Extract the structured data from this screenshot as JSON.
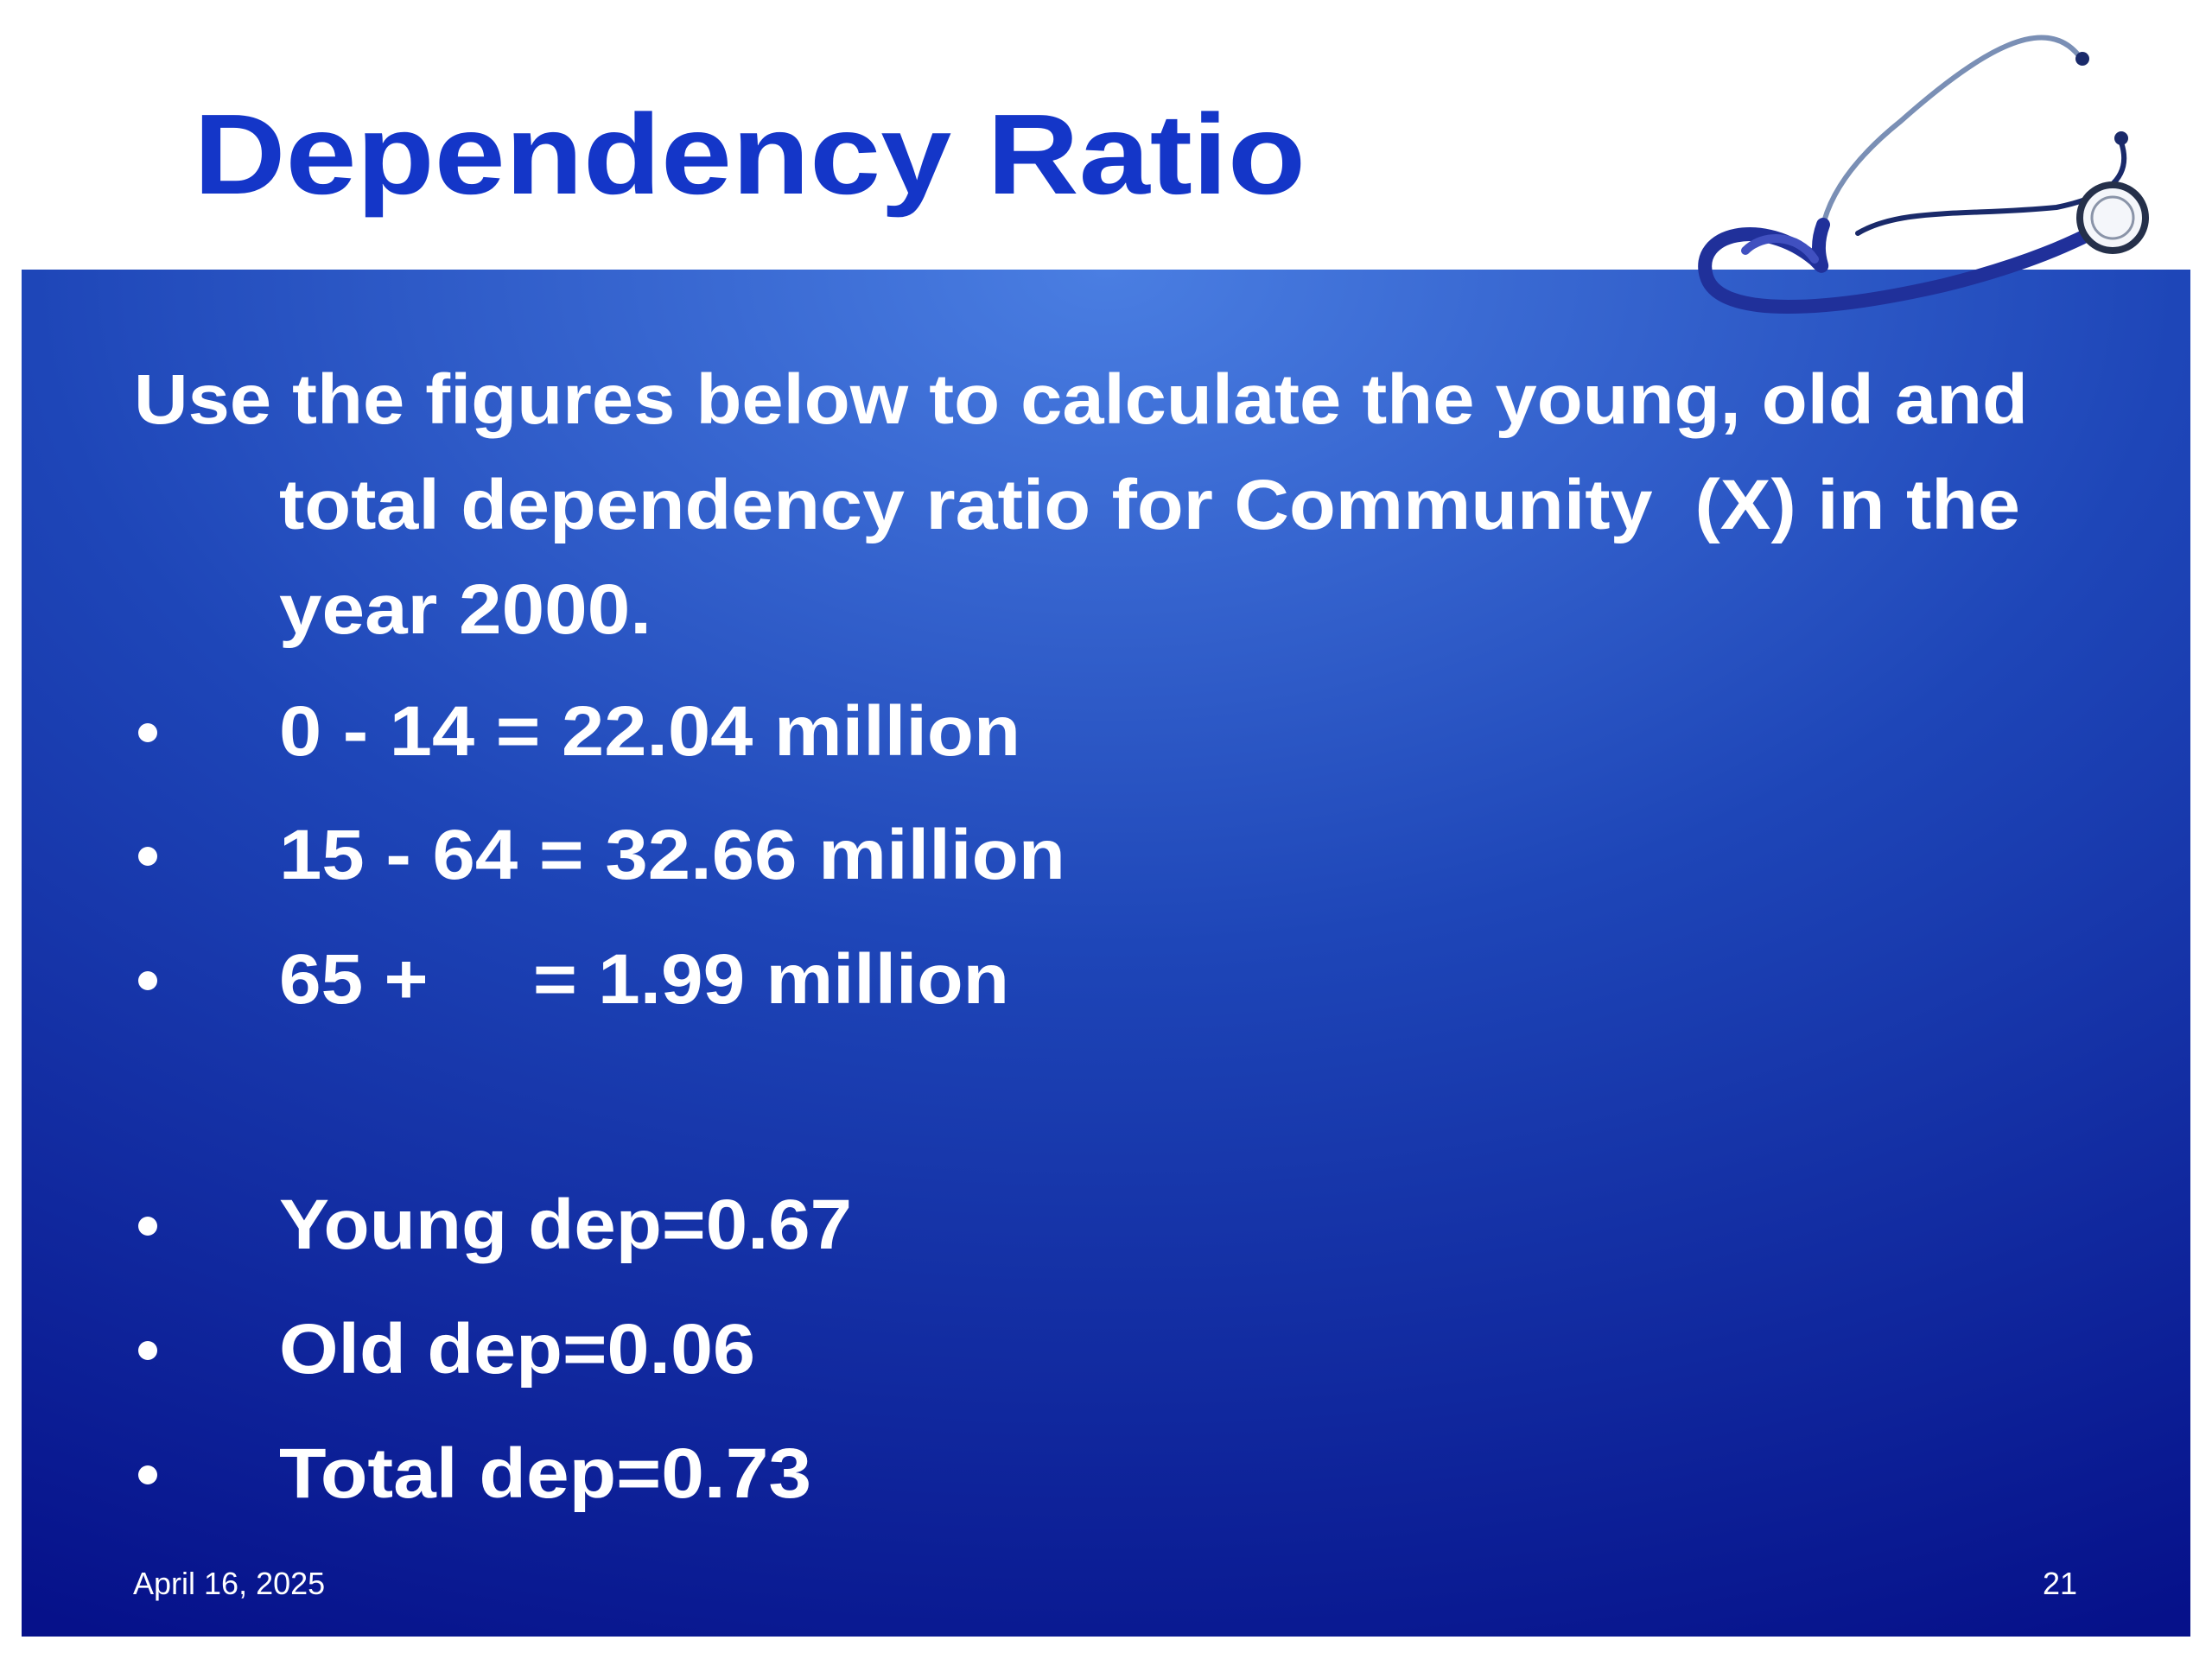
{
  "title": "Dependency Ratio",
  "intro": [
    "Use the figures below to calculate the young, old and",
    "total dependency ratio for Community  (X) in the",
    "year 2000."
  ],
  "figures": [
    "0 - 14 = 22.04 million",
    "15 - 64 = 32.66 million",
    "65 +     = 1.99 million"
  ],
  "answers": [
    "Young dep=0.67",
    "Old dep=0.06",
    "Total dep=0.73"
  ],
  "footer": {
    "date": "April 16, 2025",
    "page": "21"
  }
}
